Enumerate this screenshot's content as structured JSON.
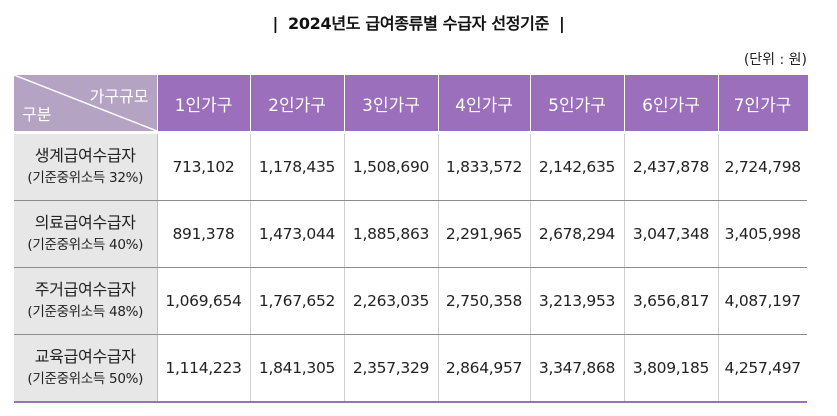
{
  "title": {
    "left_bar": "|",
    "text": "2024년도 급여종류별 수급자 선정기준",
    "right_bar": "|"
  },
  "unit": "(단위 : 원)",
  "table": {
    "corner_top": "가구규모",
    "corner_bottom": "구분",
    "columns": [
      "1인가구",
      "2인가구",
      "3인가구",
      "4인가구",
      "5인가구",
      "6인가구",
      "7인가구"
    ],
    "rows": [
      {
        "name": "생계급여수급자",
        "sub": "(기준중위소득 32%)",
        "values": [
          "713,102",
          "1,178,435",
          "1,508,690",
          "1,833,572",
          "2,142,635",
          "2,437,878",
          "2,724,798"
        ]
      },
      {
        "name": "의료급여수급자",
        "sub": "(기준중위소득 40%)",
        "values": [
          "891,378",
          "1,473,044",
          "1,885,863",
          "2,291,965",
          "2,678,294",
          "3,047,348",
          "3,405,998"
        ]
      },
      {
        "name": "주거급여수급자",
        "sub": "(기준중위소득 48%)",
        "values": [
          "1,069,654",
          "1,767,652",
          "2,263,035",
          "2,750,358",
          "3,213,953",
          "3,656,817",
          "4,087,197"
        ]
      },
      {
        "name": "교육급여수급자",
        "sub": "(기준중위소득 50%)",
        "values": [
          "1,114,223",
          "1,841,305",
          "2,357,329",
          "2,864,957",
          "3,347,868",
          "3,809,185",
          "4,257,497"
        ]
      }
    ]
  }
}
